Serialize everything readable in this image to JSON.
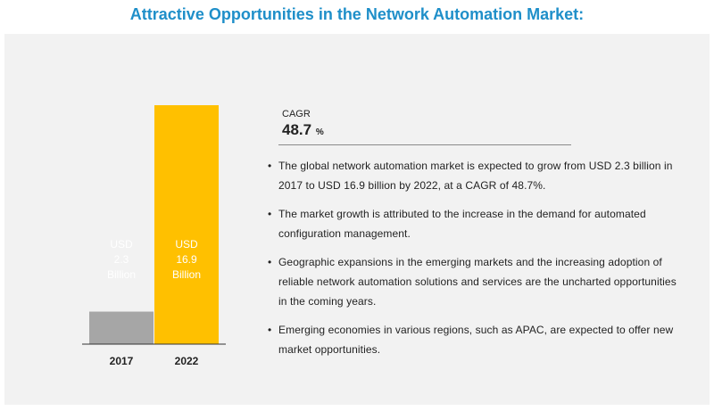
{
  "title": "Attractive Opportunities in the Network Automation Market:",
  "cagr": {
    "label": "CAGR",
    "value": "48.7",
    "unit": "%"
  },
  "bullets": [
    "The global network automation market is expected to grow from USD 2.3 billion in 2017 to USD 16.9 billion by 2022, at a CAGR of 48.7%.",
    "The market growth is attributed to the increase in the demand for automated configuration management.",
    "Geographic expansions in the emerging markets and the increasing adoption of reliable network automation solutions and services are the uncharted opportunities in the coming years.",
    "Emerging economies in various regions, such as APAC, are expected to offer new market opportunities."
  ],
  "colors": {
    "title": "#1f8fc9",
    "bar_2017": "#a6a6a6",
    "bar_2022": "#ffc000",
    "bar_text": "#ffffff"
  },
  "chart_data": {
    "type": "bar",
    "categories": [
      "2017",
      "2022"
    ],
    "values": [
      2.3,
      16.9
    ],
    "unit": "USD Billion",
    "data_labels": [
      [
        "USD",
        "2.3",
        "Billion"
      ],
      [
        "USD",
        "16.9",
        "Billion"
      ]
    ],
    "ylim": [
      0,
      16.9
    ],
    "grid": false,
    "legend": "none"
  }
}
